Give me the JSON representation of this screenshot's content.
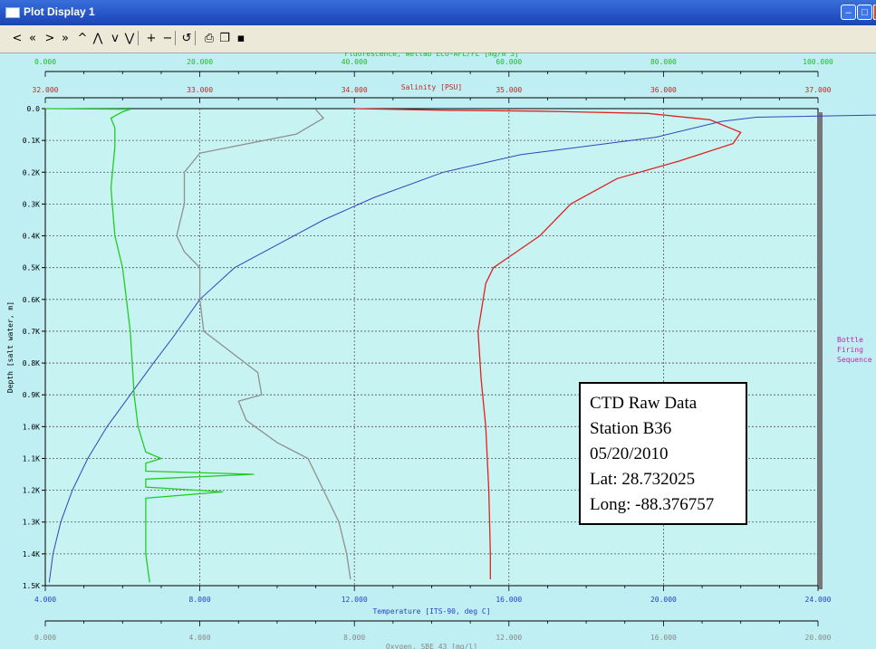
{
  "window": {
    "title": "Plot Display 1",
    "min": "–",
    "max": "□",
    "close": "×"
  },
  "toolbar": {
    "buttons": [
      {
        "name": "first-icon",
        "glyph": "<"
      },
      {
        "name": "rewind-icon",
        "glyph": "«"
      },
      {
        "name": "forward-icon",
        "glyph": ">"
      },
      {
        "name": "fast-forward-icon",
        "glyph": "»"
      },
      {
        "name": "up-icon",
        "glyph": "^"
      },
      {
        "name": "page-up-icon",
        "glyph": "⋀"
      },
      {
        "name": "down-icon",
        "glyph": "v"
      },
      {
        "name": "page-down-icon",
        "glyph": "⋁"
      },
      {
        "name": "zoom-in-icon",
        "glyph": "+"
      },
      {
        "name": "zoom-out-icon",
        "glyph": "−"
      },
      {
        "name": "undo-icon",
        "glyph": "↺"
      },
      {
        "name": "print-icon",
        "glyph": "⎙"
      },
      {
        "name": "copy-icon",
        "glyph": "❐"
      },
      {
        "name": "save-icon",
        "glyph": "▪"
      }
    ]
  },
  "chart_data": {
    "type": "line",
    "background": "#bfeff2",
    "plot_background": "#c8f3f3",
    "grid": true,
    "y_axis": {
      "label": "Depth [salt water, m]",
      "range": [
        0,
        1500
      ],
      "inverted": true,
      "ticks": [
        "0.0",
        "0.1K",
        "0.2K",
        "0.3K",
        "0.4K",
        "0.5K",
        "0.6K",
        "0.7K",
        "0.8K",
        "0.9K",
        "1.0K",
        "1.1K",
        "1.2K",
        "1.3K",
        "1.4K",
        "1.5K"
      ]
    },
    "x_axes": [
      {
        "id": "fluor",
        "position": "top-outer",
        "label": "Fluorescence, Wetlab ECO-AFL/FL [mg/m^3]",
        "color": "#22bb22",
        "range": [
          0,
          100
        ],
        "ticks": [
          "0.000",
          "20.000",
          "40.000",
          "60.000",
          "80.000",
          "100.000"
        ]
      },
      {
        "id": "sal",
        "position": "top-inner",
        "label": "Salinity [PSU]",
        "color": "#cc2222",
        "range": [
          32,
          37
        ],
        "ticks": [
          "32.000",
          "33.000",
          "34.000",
          "35.000",
          "36.000",
          "37.000"
        ]
      },
      {
        "id": "temp",
        "position": "bottom-inner",
        "label": "Temperature [ITS-90, deg C]",
        "color": "#2244cc",
        "range": [
          4,
          24
        ],
        "ticks": [
          "4.000",
          "8.000",
          "12.000",
          "16.000",
          "20.000",
          "24.000"
        ]
      },
      {
        "id": "oxy",
        "position": "bottom-outer",
        "label": "Oxygen, SBE 43 [mg/l]",
        "color": "#888888",
        "range": [
          0,
          20
        ],
        "ticks": [
          "0.000",
          "4.000",
          "8.000",
          "12.000",
          "16.000",
          "20.000"
        ]
      }
    ],
    "series": [
      {
        "axis": "temp",
        "color": "#3344bb",
        "points": [
          [
            28.3,
            12
          ],
          [
            26.5,
            18
          ],
          [
            22.4,
            27
          ],
          [
            21.5,
            40
          ],
          [
            19.8,
            90
          ],
          [
            16.3,
            145
          ],
          [
            14.3,
            200
          ],
          [
            12.5,
            280
          ],
          [
            11.2,
            350
          ],
          [
            9.9,
            435
          ],
          [
            8.9,
            500
          ],
          [
            8.0,
            600
          ],
          [
            7.3,
            720
          ],
          [
            6.8,
            800
          ],
          [
            6.2,
            900
          ],
          [
            5.6,
            1000
          ],
          [
            5.1,
            1100
          ],
          [
            4.7,
            1200
          ],
          [
            4.4,
            1300
          ],
          [
            4.2,
            1400
          ],
          [
            4.1,
            1490
          ]
        ]
      },
      {
        "axis": "sal",
        "color": "#dd2222",
        "points": [
          [
            34.0,
            0
          ],
          [
            34.6,
            5
          ],
          [
            35.2,
            8
          ],
          [
            35.9,
            15
          ],
          [
            36.3,
            35
          ],
          [
            36.5,
            75
          ],
          [
            36.45,
            110
          ],
          [
            36.1,
            165
          ],
          [
            35.7,
            220
          ],
          [
            35.4,
            300
          ],
          [
            35.2,
            400
          ],
          [
            35.05,
            450
          ],
          [
            34.9,
            500
          ],
          [
            34.85,
            550
          ],
          [
            34.8,
            700
          ],
          [
            34.82,
            850
          ],
          [
            34.85,
            1000
          ],
          [
            34.87,
            1200
          ],
          [
            34.88,
            1400
          ],
          [
            34.88,
            1480
          ]
        ]
      },
      {
        "axis": "oxy",
        "color": "#909090",
        "points": [
          [
            7.0,
            3
          ],
          [
            7.2,
            30
          ],
          [
            6.5,
            80
          ],
          [
            4.0,
            140
          ],
          [
            3.6,
            200
          ],
          [
            3.6,
            300
          ],
          [
            3.4,
            400
          ],
          [
            3.6,
            450
          ],
          [
            4.0,
            500
          ],
          [
            4.0,
            600
          ],
          [
            4.1,
            700
          ],
          [
            5.5,
            830
          ],
          [
            5.6,
            900
          ],
          [
            5.0,
            920
          ],
          [
            5.2,
            980
          ],
          [
            6.0,
            1050
          ],
          [
            6.8,
            1100
          ],
          [
            7.2,
            1200
          ],
          [
            7.6,
            1300
          ],
          [
            7.8,
            1400
          ],
          [
            7.9,
            1480
          ]
        ]
      },
      {
        "axis": "fluor",
        "color": "#22cc22",
        "points": [
          [
            0,
            0
          ],
          [
            11,
            2
          ],
          [
            10,
            10
          ],
          [
            8.5,
            30
          ],
          [
            9,
            60
          ],
          [
            9,
            120
          ],
          [
            8.5,
            250
          ],
          [
            9,
            400
          ],
          [
            10,
            500
          ],
          [
            11,
            700
          ],
          [
            11.5,
            900
          ],
          [
            12,
            1000
          ],
          [
            13,
            1080
          ],
          [
            15,
            1100
          ],
          [
            13,
            1115
          ],
          [
            13,
            1140
          ],
          [
            27,
            1150
          ],
          [
            13,
            1165
          ],
          [
            13,
            1190
          ],
          [
            23,
            1205
          ],
          [
            13,
            1225
          ],
          [
            13,
            1300
          ],
          [
            13,
            1400
          ],
          [
            13.5,
            1490
          ]
        ]
      }
    ]
  },
  "info": {
    "line1": "CTD Raw Data",
    "line2": "Station B36",
    "line3": "05/20/2010",
    "line4": "Lat: 28.732025",
    "line5": "Long: -88.376757"
  },
  "side_label": {
    "line1": "Bottle",
    "line2": "Firing",
    "line3": "Sequence"
  }
}
